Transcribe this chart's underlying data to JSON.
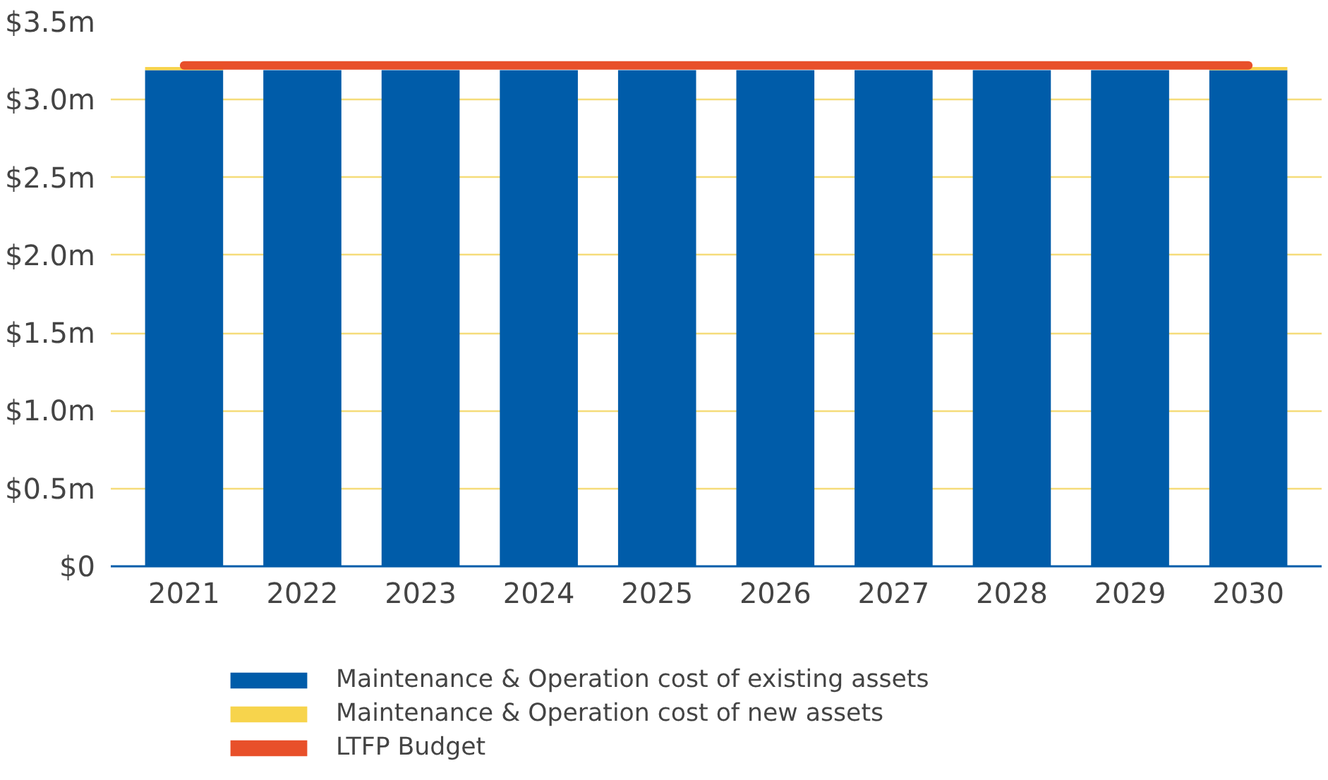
{
  "chart_data": {
    "type": "bar",
    "stacked": true,
    "categories": [
      "2021",
      "2022",
      "2023",
      "2024",
      "2025",
      "2026",
      "2027",
      "2028",
      "2029",
      "2030"
    ],
    "series": [
      {
        "name": "Maintenance & Operation cost of existing assets",
        "color": "#005ca9",
        "values": [
          3.19,
          3.19,
          3.19,
          3.19,
          3.19,
          3.19,
          3.19,
          3.19,
          3.19,
          3.19
        ]
      },
      {
        "name": "Maintenance & Operation cost of new assets",
        "color": "#f7d44c",
        "values": [
          0.02,
          null,
          null,
          null,
          null,
          null,
          null,
          null,
          null,
          0.02
        ]
      },
      {
        "name": "LTFP Budget",
        "color": "#e8502a",
        "type": "line",
        "values": [
          3.22,
          3.22,
          3.22,
          3.22,
          3.22,
          3.22,
          3.22,
          3.22,
          3.22,
          3.22
        ]
      }
    ],
    "ylim": [
      0,
      3.5
    ],
    "yticks": [
      {
        "value": 0,
        "label": "$0"
      },
      {
        "value": 0.5,
        "label": "$0.5m"
      },
      {
        "value": 1,
        "label": "$1.0m"
      },
      {
        "value": 1.5,
        "label": "$1.5m"
      },
      {
        "value": 2,
        "label": "$2.0m"
      },
      {
        "value": 2.5,
        "label": "$2.5m"
      },
      {
        "value": 3,
        "label": "$3.0m"
      },
      {
        "value": 3.5,
        "label": "$3.5m"
      }
    ],
    "grid": "y",
    "legend": "bottom"
  }
}
